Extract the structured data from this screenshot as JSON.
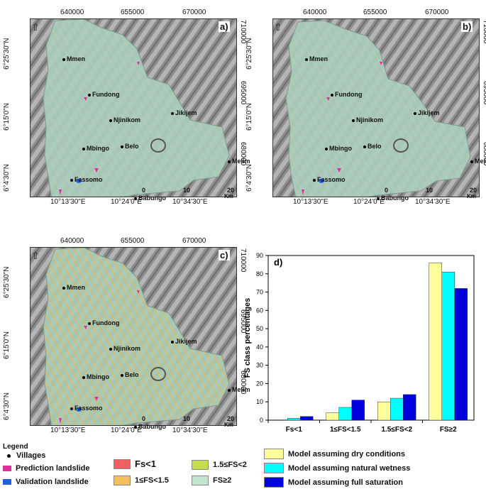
{
  "map": {
    "top_ticks": [
      "640000",
      "655000",
      "670000"
    ],
    "left_ticks": [
      "6°25'30\"N",
      "6°15'0\"N",
      "6°4'30\"N"
    ],
    "right_ticks": [
      "710000",
      "695000",
      "680000"
    ],
    "bottom_ticks": [
      "10°13'30\"E",
      "10°24'0\"E",
      "10°34'30\"E"
    ],
    "scale": {
      "labels": [
        "0",
        "10",
        "20"
      ],
      "unit": "Km"
    },
    "villages": [
      "Mmen",
      "Fundong",
      "Njinikom",
      "Jikijem",
      "Mbingo",
      "Belo",
      "Melim",
      "Fassomo",
      "Babungo"
    ],
    "panels": [
      "a)",
      "b)",
      "c)"
    ]
  },
  "legend": {
    "title": "Legend",
    "items": [
      {
        "label": "Villages",
        "icon": "dot-icon"
      },
      {
        "label": "Prediction landslide",
        "color": "#e0309a"
      },
      {
        "label": "Validation landslide",
        "color": "#2060e0"
      }
    ],
    "fs_classes": [
      {
        "label": "Fs<1",
        "color": "#f06060"
      },
      {
        "label": "1≤FS<1.5",
        "color": "#f3c060"
      },
      {
        "label": "1.5≤FS<2",
        "color": "#c8dc50"
      },
      {
        "label": "FS≥2",
        "color": "#c4e2d0"
      }
    ]
  },
  "chart_data": {
    "type": "bar",
    "panel_label": "d)",
    "ylabel": "FS class percentages",
    "xlabel": "",
    "categories": [
      "Fs<1",
      "1≤FS<1.5",
      "1.5≤FS<2",
      "FS≥2"
    ],
    "ylim": [
      0,
      90
    ],
    "yticks": [
      0,
      10,
      20,
      30,
      40,
      50,
      60,
      70,
      80,
      90
    ],
    "series": [
      {
        "name": "Model assuming dry conditions",
        "color": "#ffff99",
        "values": [
          0,
          4,
          10,
          86
        ]
      },
      {
        "name": "Model assuming natural wetness",
        "color": "#00ffff",
        "values": [
          1,
          7,
          12,
          81
        ]
      },
      {
        "name": "Model assuming full saturation",
        "color": "#0000dd",
        "values": [
          2,
          11,
          14,
          72
        ]
      }
    ]
  }
}
